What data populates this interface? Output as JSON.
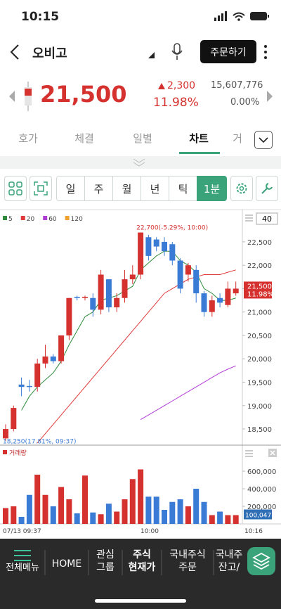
{
  "status": {
    "time": "10:15"
  },
  "header": {
    "title": "오비고",
    "order_button": "주문하기"
  },
  "quote": {
    "price": "21,500",
    "change": "2,300",
    "change_pct": "11.98%",
    "volume": "15,607,776",
    "rate": "0.00%"
  },
  "tabs": [
    "호가",
    "체결",
    "일별",
    "차트",
    "거"
  ],
  "toolbar": [
    "일",
    "주",
    "월",
    "년",
    "틱",
    "1분"
  ],
  "chart_data": {
    "type": "candlestick",
    "count_box": "40",
    "up_color": "#d5312e",
    "down_color": "#3a7bd5",
    "ylim": [
      18170,
      23160
    ],
    "yticks": [
      {
        "value": 18500,
        "label": "18,500"
      },
      {
        "value": 19000,
        "label": "19,000"
      },
      {
        "value": 19500,
        "label": "19,500"
      },
      {
        "value": 20000,
        "label": "20,000"
      },
      {
        "value": 20500,
        "label": "20,500"
      },
      {
        "value": 21000,
        "label": "21,000"
      },
      {
        "value": 21500,
        "label": "21,500"
      },
      {
        "value": 22000,
        "label": "22,000"
      },
      {
        "value": 22500,
        "label": "22,500"
      }
    ],
    "indicators": [
      {
        "name": "5",
        "color": "#2e8b3a",
        "values": [
          null,
          null,
          18900,
          19200,
          19400,
          19550,
          19700,
          19950,
          20300,
          20600,
          20900,
          21000,
          21250,
          21300,
          21350,
          21450,
          21550,
          21900,
          22050,
          22200,
          22300,
          22300,
          22100,
          22000,
          21850,
          21500,
          21400,
          21250,
          21250,
          21300
        ]
      },
      {
        "name": "20",
        "color": "#e03a3a",
        "values": [
          null,
          null,
          null,
          null,
          18200,
          18400,
          18600,
          18800,
          19000,
          19200,
          19400,
          19600,
          19800,
          20000,
          20200,
          20400,
          20600,
          20800,
          21000,
          21200,
          21400,
          21500,
          21600,
          21700,
          21750,
          21800,
          21800,
          21800,
          21850,
          21900
        ]
      },
      {
        "name": "60",
        "color": "#b23cd6",
        "values": [
          null,
          null,
          null,
          null,
          null,
          null,
          null,
          null,
          null,
          null,
          null,
          null,
          null,
          null,
          null,
          null,
          null,
          18700,
          18800,
          18900,
          19000,
          19100,
          19200,
          19300,
          19400,
          19500,
          19600,
          19700,
          19780,
          19850
        ]
      },
      {
        "name": "120",
        "color": "#f0a030"
      }
    ],
    "candles": [
      {
        "open": 18300,
        "high": 18600,
        "low": 18250,
        "close": 18500
      },
      {
        "open": 18500,
        "high": 19000,
        "low": 18450,
        "close": 18950
      },
      {
        "open": 19450,
        "high": 19600,
        "low": 19200,
        "close": 19400
      },
      {
        "open": 19420,
        "high": 19550,
        "low": 19300,
        "close": 19400
      },
      {
        "open": 19400,
        "high": 20000,
        "low": 19300,
        "close": 19900
      },
      {
        "open": 19900,
        "high": 20300,
        "low": 19800,
        "close": 20050
      },
      {
        "open": 20050,
        "high": 20100,
        "low": 19900,
        "close": 19950
      },
      {
        "open": 19950,
        "high": 20500,
        "low": 19900,
        "close": 20500
      },
      {
        "open": 20500,
        "high": 21300,
        "low": 20400,
        "close": 21300
      },
      {
        "open": 21320,
        "high": 21350,
        "low": 21250,
        "close": 21300
      },
      {
        "open": 21300,
        "high": 21350,
        "low": 21250,
        "close": 21320
      },
      {
        "open": 21300,
        "high": 21400,
        "low": 20900,
        "close": 21050
      },
      {
        "open": 21050,
        "high": 21900,
        "low": 20950,
        "close": 21800
      },
      {
        "open": 21700,
        "high": 21700,
        "low": 21000,
        "close": 21100
      },
      {
        "open": 21100,
        "high": 21400,
        "low": 21000,
        "close": 21300
      },
      {
        "open": 21300,
        "high": 21900,
        "low": 21200,
        "close": 21700
      },
      {
        "open": 21700,
        "high": 22000,
        "low": 21600,
        "close": 21800
      },
      {
        "open": 21800,
        "high": 22700,
        "low": 21700,
        "close": 22700
      },
      {
        "open": 22600,
        "high": 22650,
        "low": 22100,
        "close": 22200
      },
      {
        "open": 22550,
        "high": 22600,
        "low": 22300,
        "close": 22400
      },
      {
        "open": 22500,
        "high": 22600,
        "low": 22200,
        "close": 22300
      },
      {
        "open": 22450,
        "high": 22500,
        "low": 22000,
        "close": 22100
      },
      {
        "open": 22100,
        "high": 22150,
        "low": 21400,
        "close": 21500
      },
      {
        "open": 21800,
        "high": 22050,
        "low": 21650,
        "close": 22000
      },
      {
        "open": 21900,
        "high": 22000,
        "low": 21200,
        "close": 21400
      },
      {
        "open": 21400,
        "high": 21450,
        "low": 20900,
        "close": 21000
      },
      {
        "open": 21000,
        "high": 21350,
        "low": 20900,
        "close": 21250
      },
      {
        "open": 21300,
        "high": 21400,
        "low": 21100,
        "close": 21200
      },
      {
        "open": 21150,
        "high": 21650,
        "low": 21100,
        "close": 21500
      },
      {
        "open": 21400,
        "high": 21650,
        "low": 21350,
        "close": 21500
      }
    ],
    "max_label": "22,700(-5.29%, 10:00)",
    "min_label": "18,250(17.81%, 09:37)",
    "last_price": "21,500",
    "last_pct": "11.98%",
    "volume": {
      "title": "거래량",
      "ylim": [
        0,
        872000
      ],
      "yticks": [
        {
          "value": 200000,
          "label": "200,000"
        },
        {
          "value": 400000,
          "label": "400,000"
        },
        {
          "value": 600000,
          "label": "600,000"
        }
      ],
      "values": [
        180000,
        200000,
        80000,
        330000,
        560000,
        330000,
        200000,
        420000,
        280000,
        120000,
        550000,
        130000,
        110000,
        230000,
        140000,
        280000,
        510000,
        620000,
        310000,
        310000,
        160000,
        250000,
        280000,
        200000,
        400000,
        250000,
        100000,
        140000,
        100000,
        100047
      ],
      "last_label": "100,047"
    },
    "x_labels": [
      "07/13 09:37",
      "10:00",
      "10:16"
    ]
  },
  "nav": [
    [
      "전체메뉴"
    ],
    [
      "HOME"
    ],
    [
      "관심",
      "그룹"
    ],
    [
      "주식",
      "현재가"
    ],
    [
      "국내주식",
      "주문"
    ],
    [
      "국내주",
      "잔고/"
    ]
  ]
}
